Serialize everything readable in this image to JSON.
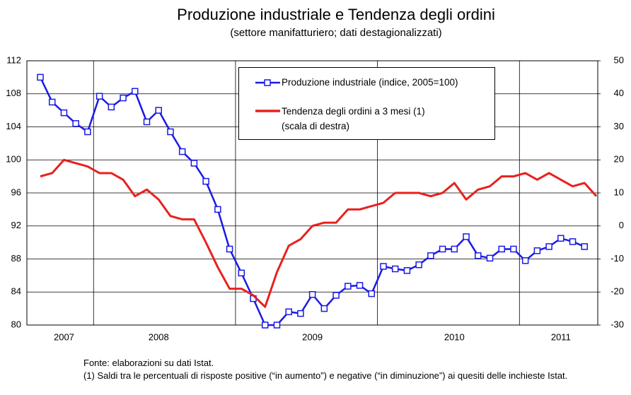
{
  "chart_data": {
    "type": "line",
    "title": "Produzione industriale e Tendenza degli ordini",
    "subtitle": "(settore manifatturiero; dati destagionalizzati)",
    "categories": [
      null,
      null,
      "2007",
      null,
      null,
      null,
      null,
      null,
      null,
      null,
      "2008",
      null,
      null,
      null,
      null,
      null,
      null,
      null,
      null,
      null,
      null,
      null,
      null,
      "2009",
      null,
      null,
      null,
      null,
      null,
      null,
      null,
      null,
      null,
      null,
      null,
      "2010",
      null,
      null,
      null,
      null,
      null,
      null,
      null,
      null,
      "2011",
      null,
      null,
      null
    ],
    "series": [
      {
        "name": "Produzione industriale (indice, 2005=100)",
        "color": "#1a1ae6",
        "marker": "square",
        "axis": "y",
        "values": [
          110,
          107,
          105.7,
          104.4,
          103.4,
          107.7,
          106.4,
          107.5,
          108.3,
          104.6,
          106,
          103.4,
          101,
          99.6,
          97.4,
          94,
          89.2,
          86.3,
          83.2,
          80,
          80,
          81.6,
          81.4,
          83.7,
          82,
          83.6,
          84.7,
          84.8,
          83.8,
          87.1,
          86.8,
          86.6,
          87.3,
          88.4,
          89.2,
          89.2,
          90.7,
          88.4,
          88.1,
          89.2,
          89.2,
          87.8,
          89,
          89.5,
          90.5,
          90.1,
          89.5,
          null
        ]
      },
      {
        "name": "Tendenza degli ordini a 3 mesi (1)\n(scala di destra)",
        "color": "#e8211e",
        "axis": "y2",
        "values": [
          15,
          16,
          20,
          19,
          18,
          16,
          16,
          14,
          9,
          11,
          8,
          3,
          2,
          2,
          -5,
          -12.5,
          -19,
          -19,
          -21,
          -24.5,
          -14,
          -6,
          -4,
          0,
          1,
          1,
          5,
          5,
          6,
          7,
          10,
          10,
          10,
          9,
          10,
          13,
          8,
          11,
          12,
          15,
          15,
          16,
          14,
          16,
          14,
          12,
          13,
          9
        ]
      }
    ],
    "ylim": [
      80,
      112
    ],
    "yticks": [
      80,
      84,
      88,
      92,
      96,
      100,
      104,
      108,
      112
    ],
    "y2lim": [
      -30,
      50
    ],
    "y2ticks": [
      -30,
      -20,
      -10,
      0,
      10,
      20,
      30,
      40,
      50
    ],
    "grid": true,
    "footnotes": [
      "Fonte: elaborazioni su dati Istat.",
      "(1) Saldi tra le percentuali di risposte positive (“in aumento”) e negative (“in diminuzione”) ai quesiti delle inchieste Istat."
    ]
  }
}
